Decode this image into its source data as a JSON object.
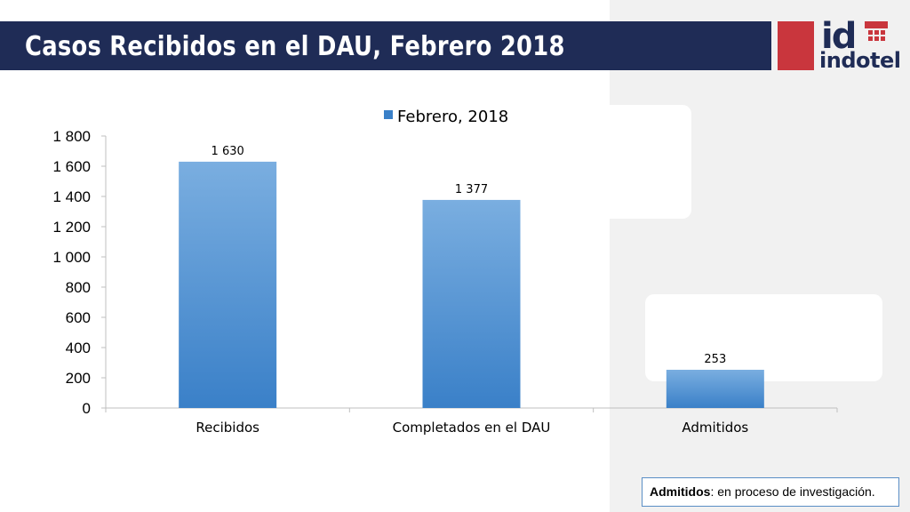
{
  "slide": {
    "title": "Casos Recibidos en el DAU, Febrero 2018",
    "note_bold": "Admitidos",
    "note_text": ": en proceso de investigación."
  },
  "logo": {
    "letters": "id",
    "wordmark": "indotel",
    "colors": {
      "red": "#c9363d",
      "navy": "#1f2c56"
    }
  },
  "colors": {
    "title_bar": "#1f2c56",
    "bar_top": "#7aaee0",
    "bar_bottom": "#3a80c8",
    "axis": "#bfbfbf"
  },
  "chart_data": {
    "type": "bar",
    "categories": [
      "Recibidos",
      "Completados en el DAU",
      "Admitidos"
    ],
    "series": [
      {
        "name": "Febrero, 2018",
        "values": [
          1630,
          1377,
          253
        ]
      }
    ],
    "data_labels": [
      "1 630",
      "1 377",
      "253"
    ],
    "ylim": [
      0,
      1800
    ],
    "yticks": [
      0,
      200,
      400,
      600,
      800,
      1000,
      1200,
      1400,
      1600,
      1800
    ],
    "ytick_labels": [
      "0",
      "200",
      "400",
      "600",
      "800",
      "1 000",
      "1 200",
      "1 400",
      "1 600",
      "1 800"
    ],
    "legend_position": "top",
    "grid": false
  }
}
